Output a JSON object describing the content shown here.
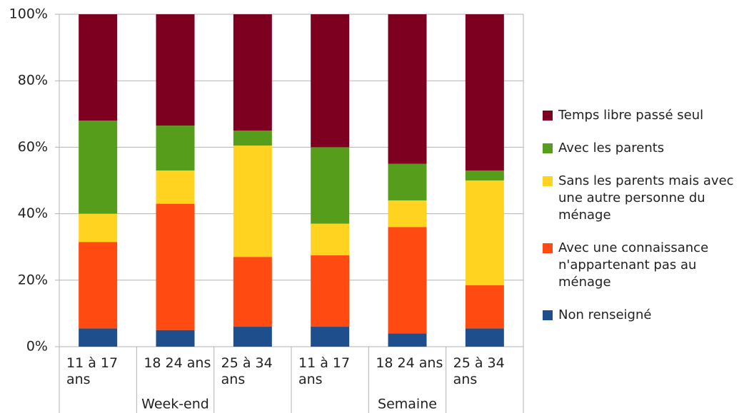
{
  "chart_data": {
    "type": "stacked_bar",
    "categories": [
      "11 à 17 ans",
      "18 24 ans",
      "25 à 34 ans",
      "11 à 17 ans",
      "18 24 ans",
      "25 à 34 ans"
    ],
    "groups": [
      {
        "label": "Week-end",
        "size": 3
      },
      {
        "label": "Semaine",
        "size": 3
      }
    ],
    "series": [
      {
        "name": "Non renseigné",
        "color": "#1f4e8c",
        "values": [
          5.5,
          5,
          6,
          6,
          4,
          5.5
        ]
      },
      {
        "name": "Avec une connaissance n'appartenant pas au ménage",
        "color": "#ff4a12",
        "values": [
          26,
          38,
          21,
          21.5,
          32,
          13
        ]
      },
      {
        "name": "Sans les parents mais avec une autre personne du ménage",
        "color": "#ffd320",
        "values": [
          8.5,
          10,
          33.5,
          9.5,
          8,
          31.5
        ]
      },
      {
        "name": "Avec les parents",
        "color": "#579d1c",
        "values": [
          28,
          13.5,
          4.5,
          23,
          11,
          3
        ]
      },
      {
        "name": "Temps libre passé seul",
        "color": "#7e0021",
        "values": [
          32,
          33.5,
          35,
          40,
          45,
          47
        ]
      }
    ],
    "ylim": [
      0,
      100
    ],
    "yticks": [
      {
        "value": 0,
        "label": "0%"
      },
      {
        "value": 20,
        "label": "20%"
      },
      {
        "value": 40,
        "label": "40%"
      },
      {
        "value": 60,
        "label": "60%"
      },
      {
        "value": 80,
        "label": "80%"
      },
      {
        "value": 100,
        "label": "100%"
      }
    ],
    "grid": true
  }
}
